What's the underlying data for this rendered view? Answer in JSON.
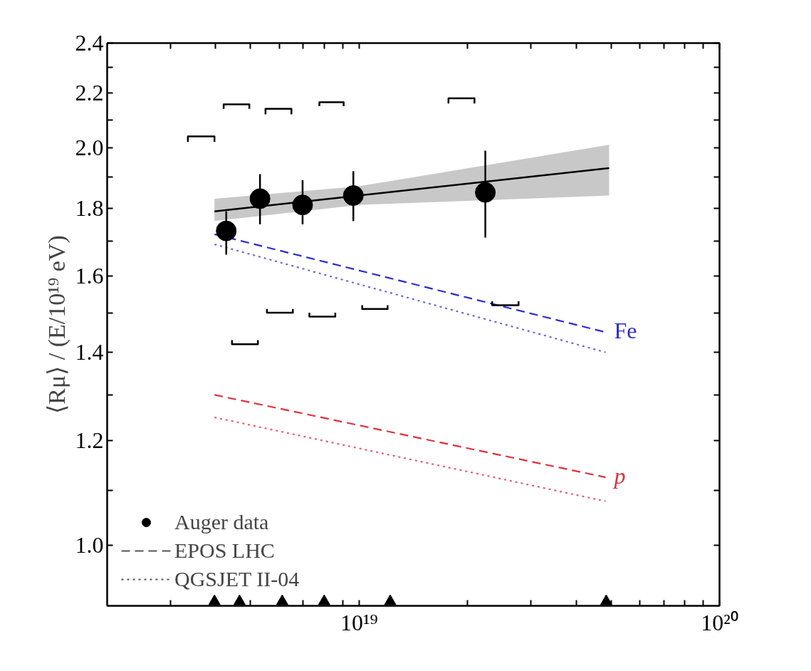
{
  "chart_data": {
    "type": "scatter",
    "ylabel": "⟨Rμ⟩ / (E/10¹⁹ eV)",
    "log": "xy",
    "xlim": [
      2e+18,
      1e+20
    ],
    "xticks": [
      {
        "value": 3e+18,
        "label": null
      },
      {
        "value": 4e+18,
        "label": null
      },
      {
        "value": 5e+18,
        "label": null
      },
      {
        "value": 6e+18,
        "label": null
      },
      {
        "value": 7e+18,
        "label": null
      },
      {
        "value": 8e+18,
        "label": null
      },
      {
        "value": 9e+18,
        "label": null
      },
      {
        "value": 1e+19,
        "label": "10¹⁹"
      },
      {
        "value": 2e+19,
        "label": null
      },
      {
        "value": 3e+19,
        "label": null
      },
      {
        "value": 4e+19,
        "label": null
      },
      {
        "value": 5e+19,
        "label": null
      },
      {
        "value": 6e+19,
        "label": null
      },
      {
        "value": 7e+19,
        "label": null
      },
      {
        "value": 8e+19,
        "label": null
      },
      {
        "value": 9e+19,
        "label": null
      },
      {
        "value": 1e+20,
        "label": "10²⁰"
      }
    ],
    "ylim": [
      0.9,
      2.4
    ],
    "yticks": [
      {
        "value": 1.0,
        "label": "1.0"
      },
      {
        "value": 1.1,
        "label": null
      },
      {
        "value": 1.2,
        "label": "1.2"
      },
      {
        "value": 1.3,
        "label": null
      },
      {
        "value": 1.4,
        "label": "1.4"
      },
      {
        "value": 1.5,
        "label": null
      },
      {
        "value": 1.6,
        "label": "1.6"
      },
      {
        "value": 1.7,
        "label": null
      },
      {
        "value": 1.8,
        "label": "1.8"
      },
      {
        "value": 1.9,
        "label": null
      },
      {
        "value": 2.0,
        "label": "2.0"
      },
      {
        "value": 2.1,
        "label": null
      },
      {
        "value": 2.2,
        "label": "2.2"
      },
      {
        "value": 2.3,
        "label": null
      },
      {
        "value": 2.4,
        "label": "2.4"
      }
    ],
    "grid": false,
    "legend": "bottom left",
    "annotations": [
      "EPOS LHC",
      "QGSJET II-04"
    ],
    "series": [
      {
        "name": "Auger data",
        "marker": "circle",
        "color": "#000000",
        "x": [
          4.28e+18,
          5.31e+18,
          6.97e+18,
          9.64e+18,
          2.24e+19
        ],
        "values": [
          1.73,
          1.83,
          1.81,
          1.84,
          1.85
        ],
        "errors": [
          [
            1.66,
            1.79
          ],
          [
            1.75,
            1.91
          ],
          [
            1.75,
            1.89
          ],
          [
            1.76,
            1.92
          ],
          [
            1.71,
            1.99
          ]
        ]
      },
      {
        "type": "line",
        "line_style": "solid",
        "color": "#000000",
        "x": [
          3.97e+18,
          1e+19,
          4.94e+19
        ],
        "values": [
          1.79,
          1.84,
          1.93
        ],
        "lower": [
          1.76,
          1.81,
          1.84
        ],
        "upper": [
          1.83,
          1.87,
          2.01
        ]
      },
      {
        "name": "Fe",
        "type": "line",
        "line_style": "dashed",
        "color": "#2b2bd0",
        "x": [
          3.97e+18,
          4.83e+19
        ],
        "values": [
          1.72,
          1.45
        ]
      },
      {
        "type": "line",
        "line_style": "dotted",
        "color": "#6a6ad8",
        "x": [
          3.97e+18,
          4.83e+19
        ],
        "values": [
          1.69,
          1.4
        ]
      },
      {
        "name": "p",
        "type": "line",
        "line_style": "dashed",
        "color": "#e0303c",
        "x": [
          3.97e+18,
          4.83e+19
        ],
        "values": [
          1.3,
          1.126
        ]
      },
      {
        "type": "line",
        "line_style": "dotted",
        "color": "#e8606c",
        "x": [
          3.97e+18,
          4.83e+19
        ],
        "values": [
          1.25,
          1.08
        ]
      },
      {
        "type": "line",
        "line_style": "solid",
        "color": "#000000",
        "x": [
          3.35e+18,
          3.35e+18,
          3.97e+18,
          3.97e+18,
          4e+18,
          4.21e+18,
          4.21e+18,
          4.96e+18,
          4.96e+18,
          5.2e+18,
          5.5e+18,
          5.5e+18,
          6.49e+18,
          6.49e+18,
          7e+18,
          7.76e+18,
          7.76e+18,
          9.06e+18,
          9.06e+18,
          1.2e+19,
          1.77e+19,
          1.77e+19,
          2.09e+19,
          2.09e+19
        ],
        "values": [
          2.02,
          2.04,
          2.04,
          2.02,
          null,
          2.14,
          2.157,
          2.157,
          2.14,
          null,
          2.12,
          2.14,
          2.14,
          2.12,
          null,
          2.15,
          2.165,
          2.165,
          2.15,
          null,
          2.16,
          2.18,
          2.18,
          2.16
        ]
      },
      {
        "type": "line",
        "line_style": "solid",
        "color": "#000000",
        "x": [
          4.44e+18,
          4.44e+18,
          5.24e+18,
          5.24e+18,
          5.4e+18,
          5.55e+18,
          5.55e+18,
          6.55e+18,
          6.55e+18,
          7e+18,
          7.28e+18,
          7.28e+18,
          8.59e+18,
          8.59e+18,
          9.5e+18,
          1.02e+19,
          1.02e+19,
          1.2e+19,
          1.2e+19,
          2e+19,
          2.34e+19,
          2.34e+19,
          2.77e+19,
          2.77e+19
        ],
        "values": [
          1.43,
          1.42,
          1.42,
          1.43,
          null,
          1.51,
          1.5,
          1.5,
          1.51,
          null,
          1.5,
          1.49,
          1.49,
          1.5,
          null,
          1.52,
          1.51,
          1.51,
          1.52,
          null,
          1.53,
          1.52,
          1.52,
          1.53
        ]
      },
      {
        "marker": "triangle",
        "color": "#000000",
        "x": [
          3.97e+18,
          4.66e+18,
          6.12e+18,
          8e+18,
          1.22e+19,
          4.85e+19
        ],
        "values": [
          0.907,
          0.907,
          0.907,
          0.907,
          0.907,
          0.907
        ]
      }
    ]
  }
}
